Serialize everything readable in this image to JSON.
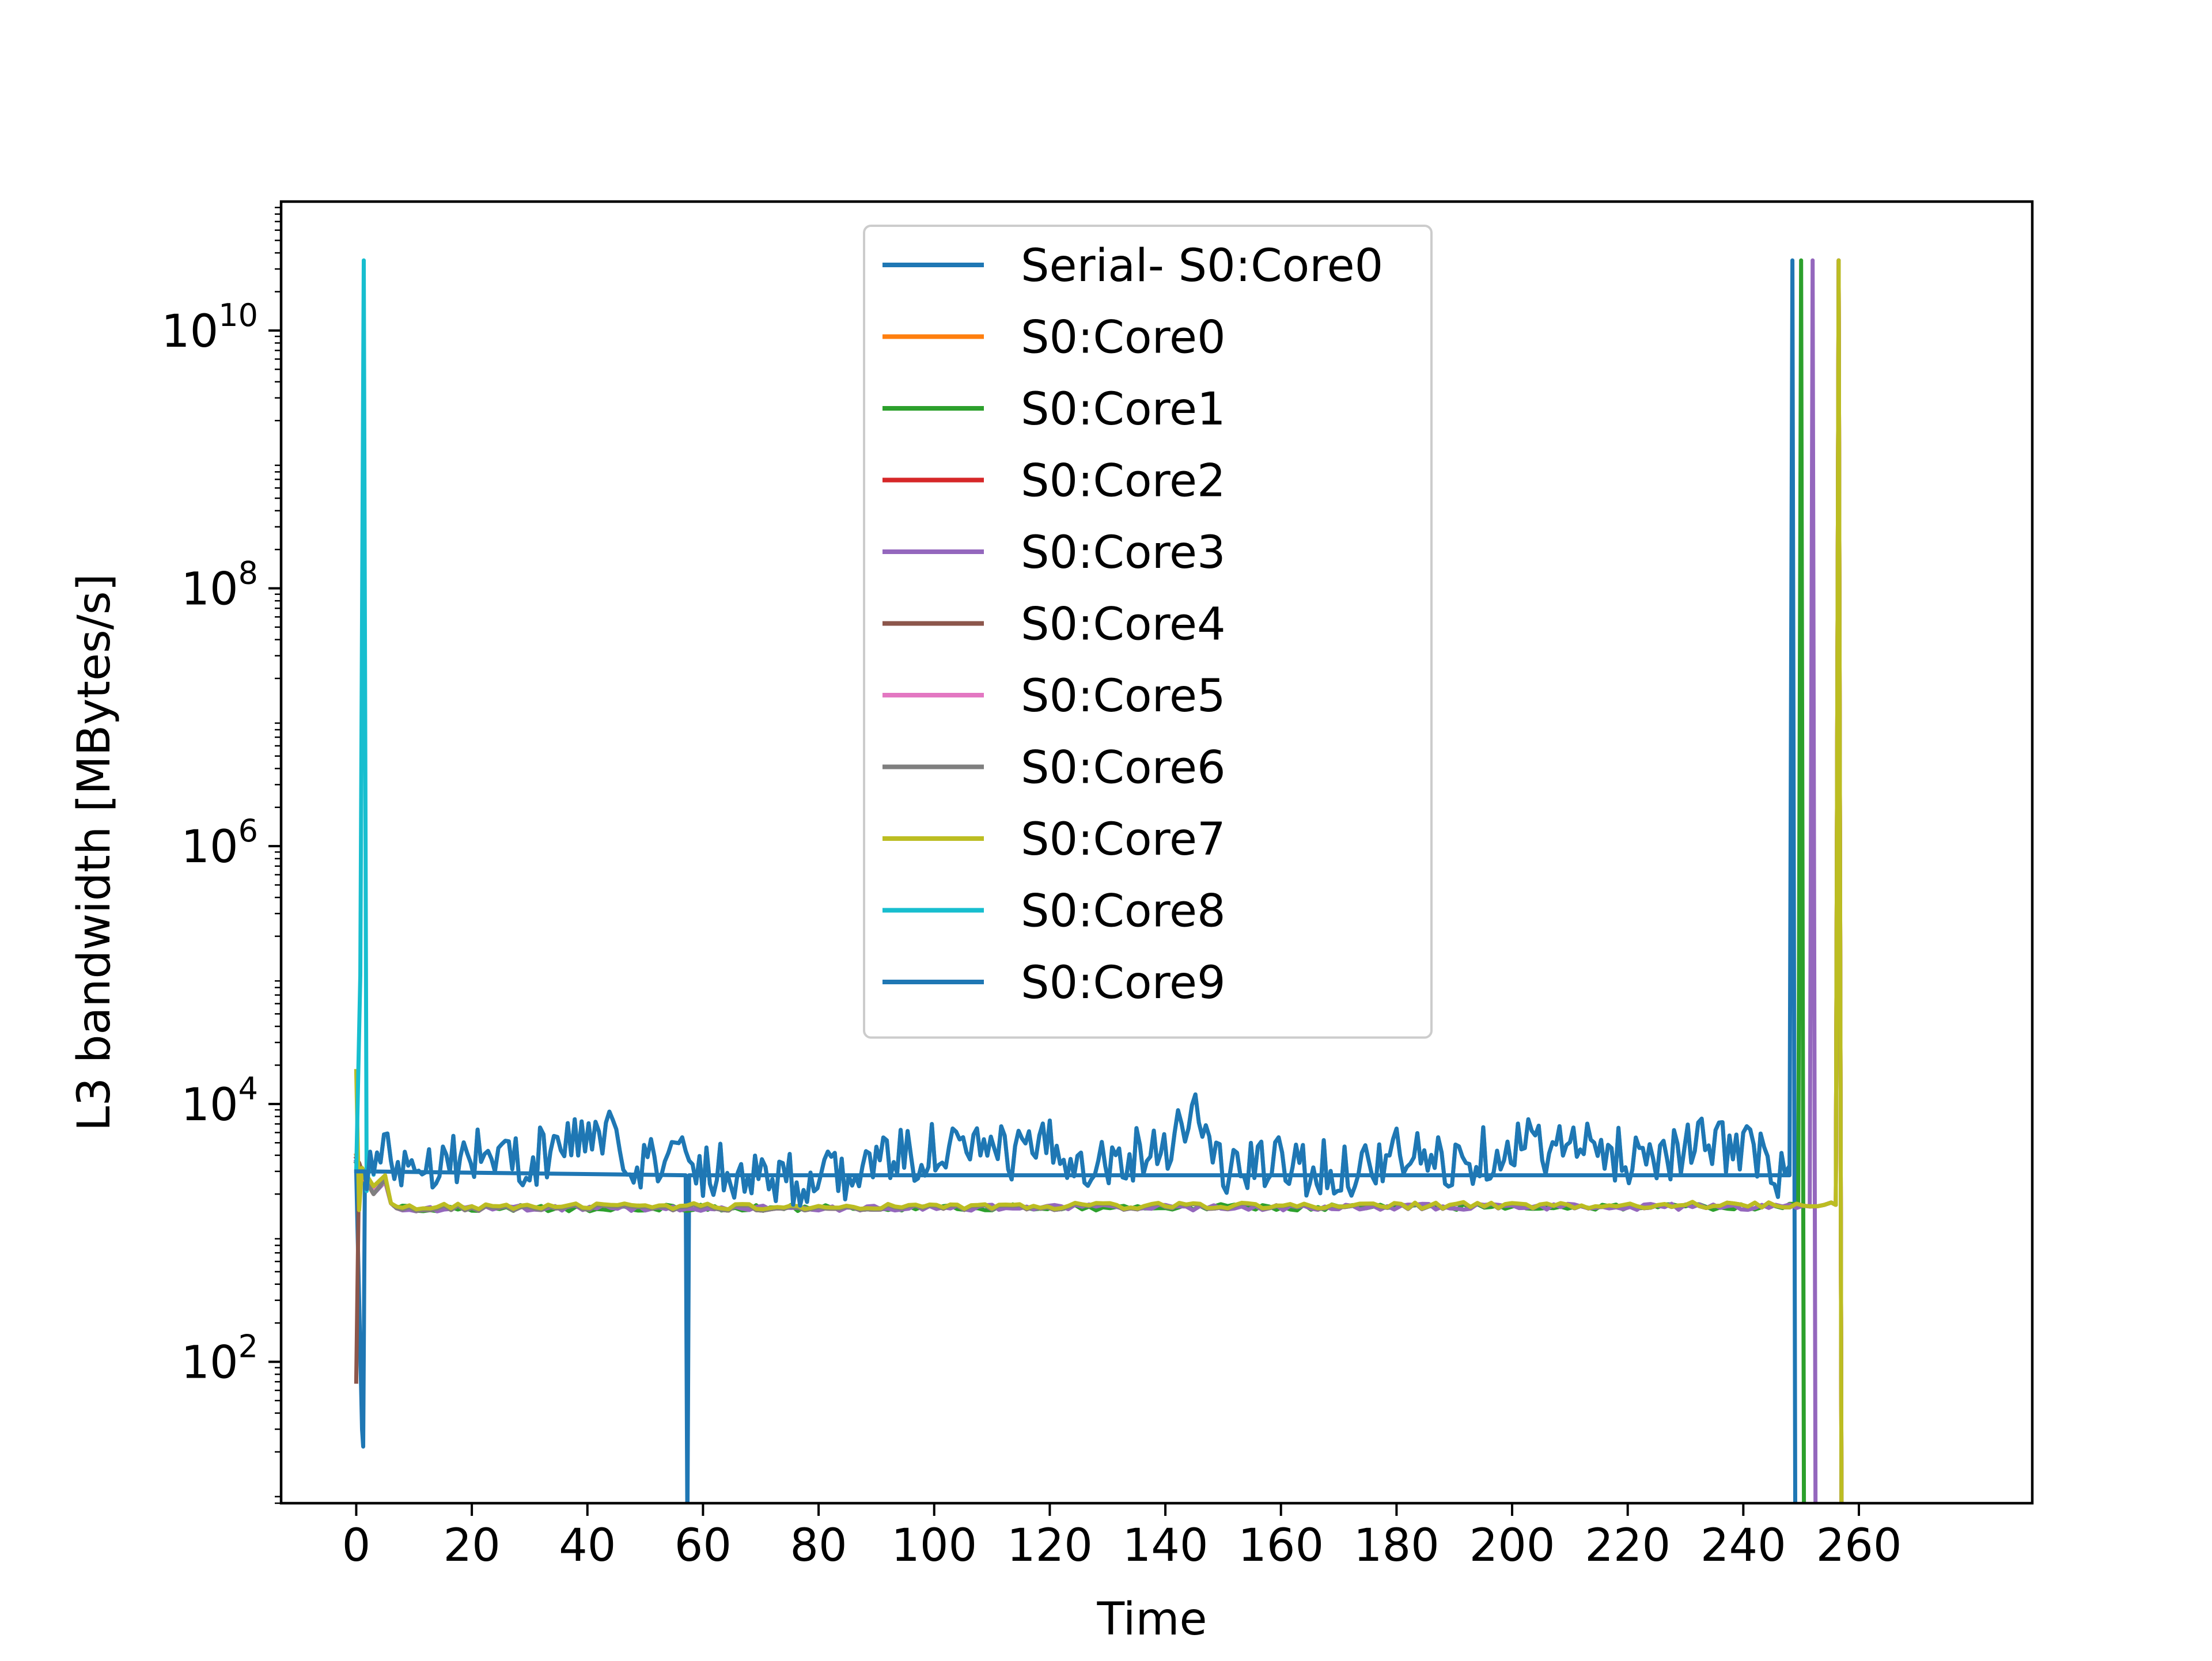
{
  "chart_data": {
    "type": "line",
    "title": "",
    "xlabel": "Time",
    "ylabel": "L3 bandwidth [MBytes/s]",
    "y_scale": "log",
    "xlim": [
      -13,
      290
    ],
    "ylim": [
      8,
      100000000000.0
    ],
    "x_ticks": [
      0,
      20,
      40,
      60,
      80,
      100,
      120,
      140,
      160,
      180,
      200,
      220,
      240,
      260
    ],
    "x_tick_labels": [
      "0",
      "20",
      "40",
      "60",
      "80",
      "100",
      "120",
      "140",
      "160",
      "180",
      "200",
      "220",
      "240",
      "260"
    ],
    "y_ticks": [
      {
        "value": 100,
        "base": "10",
        "exp": "2"
      },
      {
        "value": 10000,
        "base": "10",
        "exp": "4"
      },
      {
        "value": 1000000,
        "base": "10",
        "exp": "6"
      },
      {
        "value": 100000000,
        "base": "10",
        "exp": "8"
      },
      {
        "value": 10000000000,
        "base": "10",
        "exp": "10"
      }
    ],
    "grid": false,
    "legend_position": "upper center",
    "series": [
      {
        "name": "Serial- S0:Core0",
        "color": "#1f77b4",
        "points": [
          [
            0,
            3000
          ],
          [
            1,
            30
          ],
          [
            1.2,
            22
          ],
          [
            1.5,
            3000
          ],
          [
            57,
            2800
          ],
          [
            57.3,
            5
          ],
          [
            57.6,
            2800
          ],
          [
            248,
            2800
          ],
          [
            248.5,
            35000000000.0
          ],
          [
            249,
            5
          ]
        ]
      },
      {
        "name": "S0:Core0",
        "color": "#ff7f0e",
        "profile": "flat",
        "points": [
          [
            0,
            4000
          ],
          [
            1,
            2800
          ],
          [
            3,
            2000
          ],
          [
            5,
            2600
          ],
          [
            6,
            1700
          ],
          [
            7,
            1550
          ],
          [
            256,
            1650
          ],
          [
            256.5,
            35000000000.0
          ],
          [
            257,
            5
          ]
        ]
      },
      {
        "name": "S0:Core1",
        "color": "#2ca02c",
        "profile": "flat",
        "points": [
          [
            0,
            3500
          ],
          [
            1,
            3000
          ],
          [
            3,
            2200
          ],
          [
            5,
            2500
          ],
          [
            6,
            1700
          ],
          [
            7,
            1550
          ],
          [
            249.5,
            1600
          ],
          [
            250,
            35000000000.0
          ],
          [
            250.5,
            5
          ]
        ]
      },
      {
        "name": "S0:Core2",
        "color": "#d62728",
        "profile": "flat",
        "points": [
          [
            0,
            3800
          ],
          [
            1,
            3000
          ],
          [
            3,
            2100
          ],
          [
            5,
            2600
          ],
          [
            6,
            1700
          ],
          [
            7,
            1550
          ],
          [
            256,
            1650
          ],
          [
            256.5,
            35000000000.0
          ],
          [
            257,
            5
          ]
        ]
      },
      {
        "name": "S0:Core3",
        "color": "#9467bd",
        "profile": "flat",
        "points": [
          [
            0,
            3600
          ],
          [
            1,
            2900
          ],
          [
            3,
            2000
          ],
          [
            5,
            2500
          ],
          [
            6,
            1700
          ],
          [
            7,
            1550
          ],
          [
            251.5,
            1600
          ],
          [
            252,
            35000000000.0
          ],
          [
            252.5,
            5
          ]
        ]
      },
      {
        "name": "S0:Core4",
        "color": "#8c564b",
        "profile": "flat",
        "points": [
          [
            0,
            70
          ],
          [
            0.5,
            3500
          ],
          [
            1,
            3000
          ],
          [
            3,
            2200
          ],
          [
            5,
            2700
          ],
          [
            6,
            1700
          ],
          [
            7,
            1550
          ],
          [
            256,
            1650
          ],
          [
            256.5,
            35000000000.0
          ],
          [
            257,
            5
          ]
        ]
      },
      {
        "name": "S0:Core5",
        "color": "#e377c2",
        "profile": "flat",
        "points": [
          [
            0,
            3500
          ],
          [
            1,
            2800
          ],
          [
            3,
            2100
          ],
          [
            5,
            2500
          ],
          [
            6,
            1700
          ],
          [
            7,
            1550
          ],
          [
            256,
            1650
          ],
          [
            256.5,
            35000000000.0
          ],
          [
            257,
            5
          ]
        ]
      },
      {
        "name": "S0:Core6",
        "color": "#7f7f7f",
        "profile": "flat",
        "points": [
          [
            0,
            3500
          ],
          [
            1,
            2900
          ],
          [
            3,
            2000
          ],
          [
            5,
            2600
          ],
          [
            6,
            1700
          ],
          [
            7,
            1550
          ],
          [
            256,
            1650
          ],
          [
            256.5,
            35000000000.0
          ],
          [
            257,
            5
          ]
        ]
      },
      {
        "name": "S0:Core7",
        "color": "#bcbd22",
        "profile": "flat",
        "points": [
          [
            0,
            18000
          ],
          [
            0.5,
            1500
          ],
          [
            1,
            3200
          ],
          [
            3,
            2300
          ],
          [
            5,
            2800
          ],
          [
            6,
            1700
          ],
          [
            7,
            1600
          ],
          [
            256,
            1650
          ],
          [
            256.5,
            35000000000.0
          ],
          [
            257,
            5
          ]
        ]
      },
      {
        "name": "S0:Core8",
        "color": "#17becf",
        "profile": "noisy",
        "points": [
          [
            0,
            3000
          ],
          [
            0.7,
            100000
          ],
          [
            1.3,
            35000000000.0
          ],
          [
            1.8,
            3000
          ],
          [
            4,
            4000
          ],
          [
            10,
            3500
          ],
          [
            20,
            4200
          ],
          [
            30,
            3600
          ],
          [
            40,
            6000
          ],
          [
            45,
            5000
          ],
          [
            50,
            3500
          ],
          [
            57,
            4000
          ],
          [
            60,
            3200
          ],
          [
            70,
            3000
          ],
          [
            80,
            2400
          ],
          [
            85,
            3000
          ],
          [
            90,
            3500
          ],
          [
            100,
            4500
          ],
          [
            110,
            4000
          ],
          [
            120,
            4500
          ],
          [
            130,
            3500
          ],
          [
            140,
            5000
          ],
          [
            145,
            9000
          ],
          [
            150,
            3000
          ],
          [
            160,
            3500
          ],
          [
            170,
            3000
          ],
          [
            180,
            4000
          ],
          [
            190,
            3500
          ],
          [
            200,
            5000
          ],
          [
            210,
            4500
          ],
          [
            220,
            4000
          ],
          [
            230,
            4500
          ],
          [
            240,
            5000
          ],
          [
            245,
            3000
          ],
          [
            248,
            2400
          ]
        ]
      },
      {
        "name": "S0:Core9",
        "color": "#1f77b4",
        "profile": "noisy",
        "points": [
          [
            0,
            3000
          ],
          [
            1.5,
            3000
          ],
          [
            4,
            4000
          ],
          [
            10,
            3500
          ],
          [
            20,
            4200
          ],
          [
            30,
            3600
          ],
          [
            40,
            6000
          ],
          [
            45,
            5000
          ],
          [
            50,
            3500
          ],
          [
            57,
            4000
          ],
          [
            60,
            3200
          ],
          [
            70,
            3000
          ],
          [
            80,
            2400
          ],
          [
            85,
            3000
          ],
          [
            90,
            3500
          ],
          [
            100,
            4500
          ],
          [
            110,
            4000
          ],
          [
            120,
            4500
          ],
          [
            130,
            3500
          ],
          [
            140,
            5000
          ],
          [
            145,
            9000
          ],
          [
            150,
            3000
          ],
          [
            160,
            3500
          ],
          [
            170,
            3000
          ],
          [
            180,
            4000
          ],
          [
            190,
            3500
          ],
          [
            200,
            5000
          ],
          [
            210,
            4500
          ],
          [
            220,
            4000
          ],
          [
            230,
            4500
          ],
          [
            240,
            5000
          ],
          [
            245,
            3000
          ],
          [
            248,
            2400
          ]
        ]
      }
    ]
  }
}
